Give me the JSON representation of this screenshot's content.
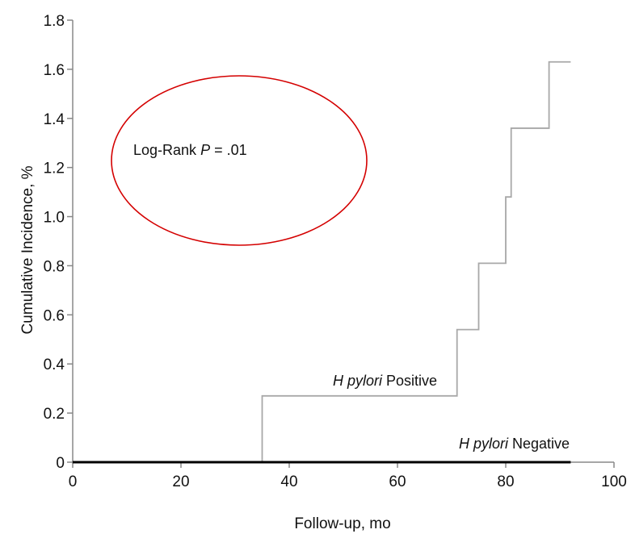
{
  "chart_data": {
    "type": "line",
    "title": "",
    "xlabel": "Follow-up, mo",
    "ylabel": "Cumulative Incidence, %",
    "xlim": [
      0,
      100
    ],
    "ylim": [
      0,
      1.8
    ],
    "x_ticks": [
      0,
      20,
      40,
      60,
      80,
      100
    ],
    "x_tick_labels": [
      "0",
      "20",
      "40",
      "60",
      "80",
      "100"
    ],
    "y_ticks": [
      0,
      0.2,
      0.4,
      0.6,
      0.8,
      1.0,
      1.2,
      1.4,
      1.6,
      1.8
    ],
    "y_tick_labels": [
      "0",
      "0.2",
      "0.4",
      "0.6",
      "0.8",
      "1.0",
      "1.2",
      "1.4",
      "1.6",
      "1.8"
    ],
    "grid": false,
    "step": true,
    "series": [
      {
        "name_italic": "H pylori",
        "name_rest": " Positive",
        "color": "#a8a8a8",
        "x": [
          0,
          35,
          71,
          75,
          80,
          81,
          88,
          92
        ],
        "y": [
          0,
          0.27,
          0.54,
          0.81,
          1.08,
          1.36,
          1.63,
          1.63
        ]
      },
      {
        "name_italic": "H pylori",
        "name_rest": " Negative",
        "color": "#000000",
        "x": [
          0,
          92
        ],
        "y": [
          0,
          0
        ]
      }
    ],
    "annotation": {
      "prefix": "Log-Rank ",
      "italic": "P",
      "suffix": " = .01",
      "circle_color": "#d40000"
    }
  }
}
